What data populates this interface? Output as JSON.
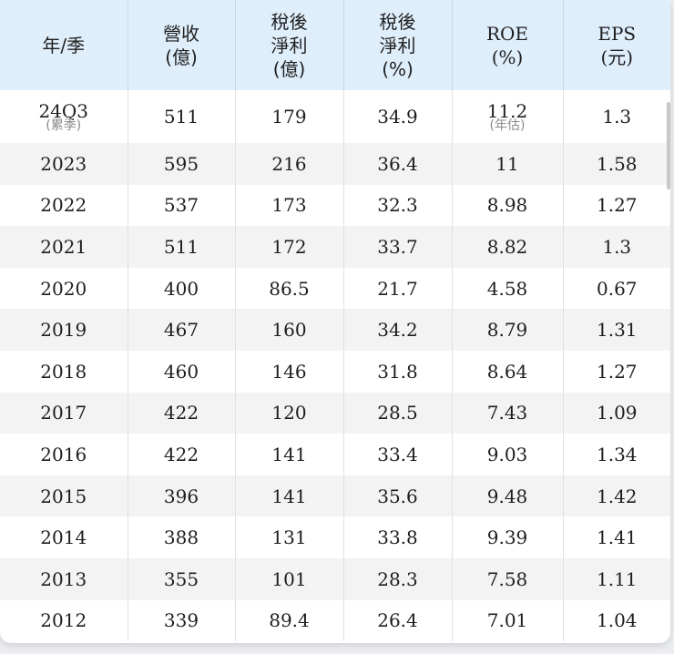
{
  "table": {
    "headers": [
      {
        "lines": [
          "年/季"
        ]
      },
      {
        "lines": [
          "營收",
          "(億)"
        ]
      },
      {
        "lines": [
          "稅後",
          "淨利",
          "(億)"
        ]
      },
      {
        "lines": [
          "稅後",
          "淨利",
          "(%)"
        ]
      },
      {
        "lines": [
          "ROE",
          "(%)"
        ]
      },
      {
        "lines": [
          "EPS",
          "(元)"
        ]
      }
    ],
    "first_row": {
      "period": "24Q3",
      "period_note": "(累季)",
      "revenue": "511",
      "net_income": "179",
      "net_margin": "34.9",
      "roe": "11.2",
      "roe_note": "(年估)",
      "eps": "1.3"
    },
    "rows": [
      [
        "2023",
        "595",
        "216",
        "36.4",
        "11",
        "1.58"
      ],
      [
        "2022",
        "537",
        "173",
        "32.3",
        "8.98",
        "1.27"
      ],
      [
        "2021",
        "511",
        "172",
        "33.7",
        "8.82",
        "1.3"
      ],
      [
        "2020",
        "400",
        "86.5",
        "21.7",
        "4.58",
        "0.67"
      ],
      [
        "2019",
        "467",
        "160",
        "34.2",
        "8.79",
        "1.31"
      ],
      [
        "2018",
        "460",
        "146",
        "31.8",
        "8.64",
        "1.27"
      ],
      [
        "2017",
        "422",
        "120",
        "28.5",
        "7.43",
        "1.09"
      ],
      [
        "2016",
        "422",
        "141",
        "33.4",
        "9.03",
        "1.34"
      ],
      [
        "2015",
        "396",
        "141",
        "35.6",
        "9.48",
        "1.42"
      ],
      [
        "2014",
        "388",
        "131",
        "33.8",
        "9.39",
        "1.41"
      ],
      [
        "2013",
        "355",
        "101",
        "28.3",
        "7.58",
        "1.11"
      ],
      [
        "2012",
        "339",
        "89.4",
        "26.4",
        "7.01",
        "1.04"
      ]
    ]
  },
  "colors": {
    "header_bg": "#dfeefb",
    "row_alt_bg": "#f3f3f3",
    "note_text": "#8a8a8a"
  }
}
